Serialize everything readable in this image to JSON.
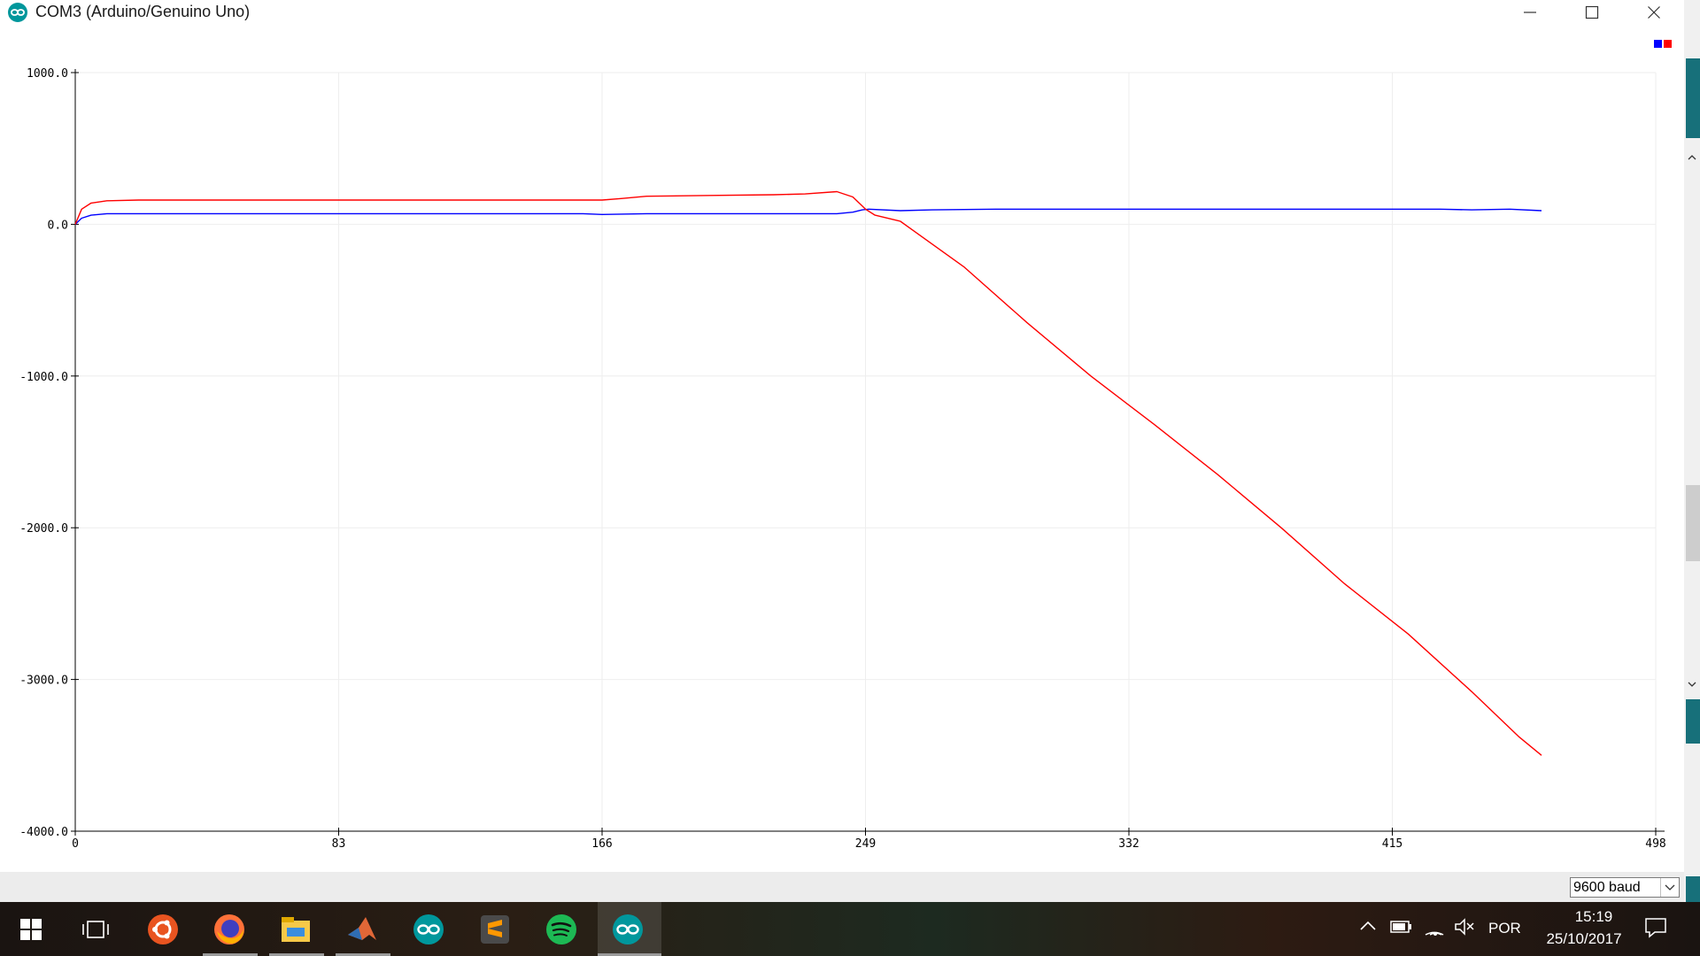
{
  "window": {
    "title": "COM3 (Arduino/Genuino Uno)",
    "controls": {
      "minimize": "minimize-icon",
      "maximize": "maximize-icon",
      "close": "close-icon"
    }
  },
  "chart_data": {
    "type": "line",
    "xlim": [
      0,
      498
    ],
    "ylim": [
      -4000,
      1000
    ],
    "x_ticks": [
      0,
      83,
      166,
      249,
      332,
      415,
      498
    ],
    "x_tick_labels": [
      "0",
      "83",
      "166",
      "249",
      "332",
      "415",
      "498"
    ],
    "y_ticks": [
      1000,
      0,
      -1000,
      -2000,
      -3000,
      -4000
    ],
    "y_tick_labels": [
      "1000.0",
      "0.0",
      "-1000.0",
      "-2000.0",
      "-3000.0",
      "-4000.0"
    ],
    "grid": true,
    "legend_placement": "top-right",
    "series": [
      {
        "color": "#0000ff",
        "x": [
          0,
          2,
          5,
          10,
          20,
          40,
          80,
          120,
          160,
          166,
          180,
          200,
          220,
          230,
          235,
          240,
          245,
          248,
          250,
          260,
          270,
          290,
          320,
          350,
          380,
          410,
          430,
          440,
          452,
          462
        ],
        "y": [
          0,
          40,
          60,
          70,
          70,
          70,
          70,
          70,
          70,
          65,
          70,
          70,
          70,
          70,
          70,
          70,
          80,
          95,
          100,
          90,
          95,
          100,
          100,
          100,
          100,
          100,
          100,
          95,
          100,
          90
        ]
      },
      {
        "color": "#ff0000",
        "x": [
          0,
          2,
          5,
          10,
          20,
          40,
          80,
          120,
          160,
          166,
          172,
          180,
          200,
          220,
          230,
          240,
          245,
          249,
          252,
          260,
          280,
          300,
          320,
          340,
          360,
          380,
          400,
          420,
          440,
          455,
          462
        ],
        "y": [
          0,
          100,
          140,
          155,
          160,
          160,
          160,
          160,
          160,
          160,
          170,
          185,
          190,
          195,
          200,
          215,
          180,
          100,
          60,
          20,
          -280,
          -650,
          -1000,
          -1320,
          -1650,
          -2000,
          -2370,
          -2700,
          -3080,
          -3380,
          -3500
        ]
      }
    ]
  },
  "serial": {
    "baud_value": "9600 baud"
  },
  "taskbar": {
    "apps": [
      {
        "name": "windows-start-icon",
        "color": "#ffffff"
      },
      {
        "name": "task-view-icon",
        "color": "#ffffff"
      },
      {
        "name": "ubuntu-icon",
        "color": "#e95420"
      },
      {
        "name": "firefox-icon",
        "color": "#ff7139"
      },
      {
        "name": "file-explorer-icon",
        "color": "#f7c948"
      },
      {
        "name": "matlab-icon",
        "color": "#e16737"
      },
      {
        "name": "arduino-icon",
        "color": "#00979c"
      },
      {
        "name": "sublime-text-icon",
        "color": "#ff9800"
      },
      {
        "name": "spotify-icon",
        "color": "#1db954"
      },
      {
        "name": "arduino-icon",
        "color": "#00979c"
      }
    ],
    "tray": {
      "language": "POR",
      "time": "15:19",
      "date": "25/10/2017"
    }
  }
}
